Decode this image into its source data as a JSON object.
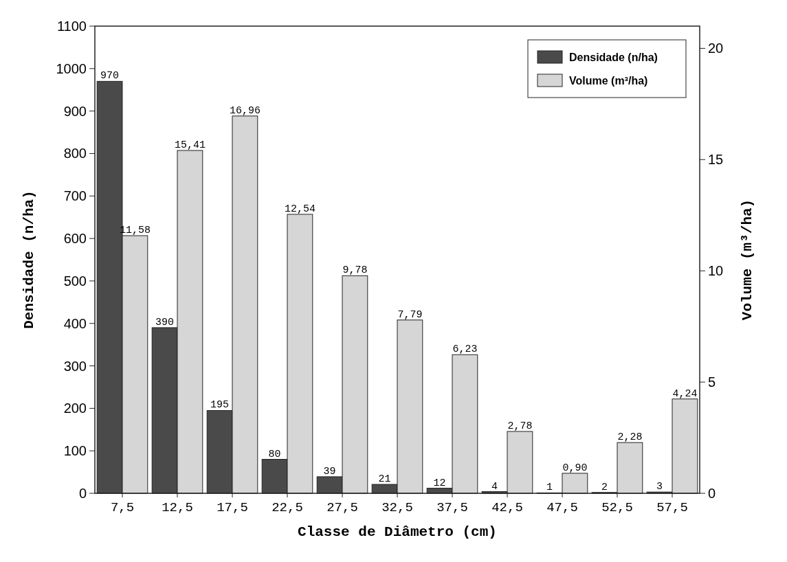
{
  "chart_data": {
    "type": "bar",
    "xlabel": "Classe de Diâmetro (cm)",
    "ylabel": "Densidade (n/ha)",
    "y2label": "Volume (m³/ha)",
    "categories": [
      "7,5",
      "12,5",
      "17,5",
      "22,5",
      "27,5",
      "32,5",
      "37,5",
      "42,5",
      "47,5",
      "52,5",
      "57,5"
    ],
    "series": [
      {
        "name": "Densidade (n/ha)",
        "color": "#4a4a4a",
        "values": [
          970,
          390,
          195,
          80,
          39,
          21,
          12,
          4,
          1,
          2,
          3
        ],
        "value_labels": [
          "970",
          "390",
          "195",
          "80",
          "39",
          "21",
          "12",
          "4",
          "1",
          "2",
          "3"
        ]
      },
      {
        "name": "Volume (m³/ha)",
        "color": "#d6d6d6",
        "axis": "y2",
        "values": [
          11.58,
          15.41,
          16.96,
          12.54,
          9.78,
          7.79,
          6.23,
          2.78,
          0.9,
          2.28,
          4.24
        ],
        "value_labels": [
          "11,58",
          "15,41",
          "16,96",
          "12,54",
          "9,78",
          "7,79",
          "6,23",
          "2,78",
          "0,90",
          "2,28",
          "4,24"
        ]
      }
    ],
    "ylim": [
      0,
      1100
    ],
    "yticks": [
      0,
      100,
      200,
      300,
      400,
      500,
      600,
      700,
      800,
      900,
      1000,
      1100
    ],
    "y2lim": [
      0,
      21
    ],
    "y2ticks": [
      0,
      5,
      10,
      15,
      20
    ],
    "legend": "top right",
    "grid": false
  }
}
